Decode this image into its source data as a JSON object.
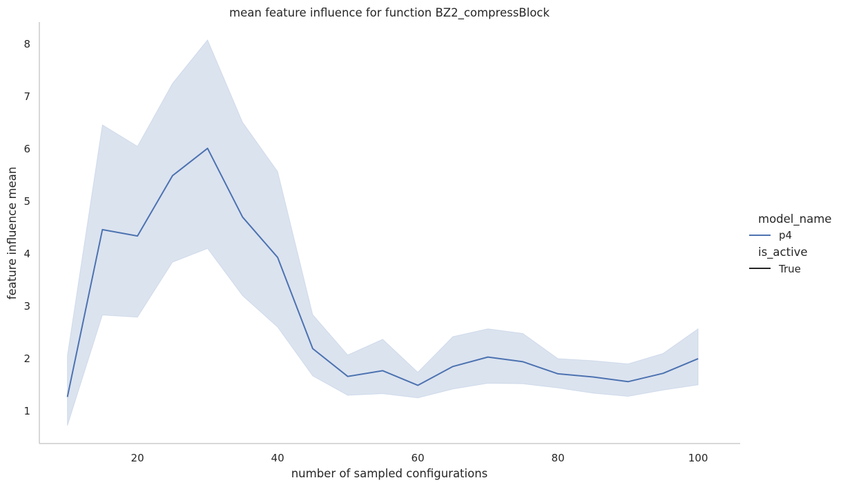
{
  "chart_data": {
    "type": "line",
    "title": "mean feature influence for function BZ2_compressBlock",
    "xlabel": "number of sampled configurations",
    "ylabel": "feature influence mean",
    "xlim": [
      6,
      106
    ],
    "ylim": [
      0.38,
      8.42
    ],
    "xticks": [
      20,
      40,
      60,
      80,
      100
    ],
    "yticks": [
      1,
      2,
      3,
      4,
      5,
      6,
      7,
      8
    ],
    "grid": false,
    "legend_placement": "right",
    "legend": {
      "title_1": "model_name",
      "entry_1": "p4",
      "title_2": "is_active",
      "entry_2": "True"
    },
    "series": [
      {
        "name": "p4",
        "color": "#4C72B0",
        "band_color": "#4C72B0",
        "x": [
          10,
          15,
          20,
          25,
          30,
          35,
          40,
          45,
          50,
          55,
          60,
          65,
          70,
          75,
          80,
          85,
          90,
          95,
          100
        ],
        "values": [
          1.27,
          4.46,
          4.34,
          5.49,
          6.01,
          4.7,
          3.93,
          2.19,
          1.66,
          1.77,
          1.49,
          1.85,
          2.03,
          1.94,
          1.71,
          1.65,
          1.56,
          1.72,
          2.0
        ],
        "ci_lower": [
          0.72,
          2.83,
          2.79,
          3.84,
          4.1,
          3.2,
          2.6,
          1.67,
          1.3,
          1.33,
          1.25,
          1.42,
          1.53,
          1.52,
          1.44,
          1.34,
          1.28,
          1.4,
          1.5
        ],
        "ci_upper": [
          2.06,
          6.46,
          6.05,
          7.25,
          8.08,
          6.51,
          5.57,
          2.84,
          2.07,
          2.37,
          1.74,
          2.42,
          2.57,
          2.48,
          2.0,
          1.96,
          1.9,
          2.1,
          2.57
        ]
      }
    ]
  }
}
